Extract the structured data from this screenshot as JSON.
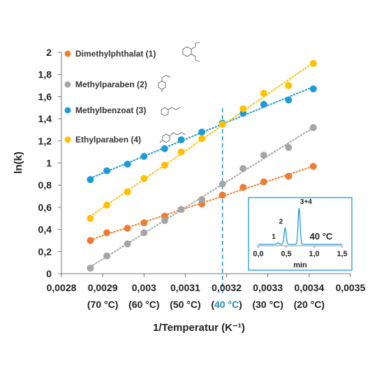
{
  "chart_data": {
    "type": "scatter",
    "xlabel": "1/Temperatur (K⁻¹)",
    "ylabel": "ln(k)",
    "xlim": [
      0.0028,
      0.0035
    ],
    "ylim": [
      0,
      2
    ],
    "x_ticks": [
      "0,0028",
      "0,0029",
      "0,003",
      "0,0031",
      "0,0032",
      "0,0033",
      "0,0034",
      "0,0035"
    ],
    "y_ticks": [
      "0",
      "0,2",
      "0,4",
      "0,6",
      "0,8",
      "1",
      "1,2",
      "1,4",
      "1,6",
      "1,8",
      "2"
    ],
    "temperature_labels": [
      {
        "x": 0.0029,
        "text": "(70 °C)"
      },
      {
        "x": 0.003,
        "text": "(60 °C)"
      },
      {
        "x": 0.0031,
        "text": "(50 °C)"
      },
      {
        "x": 0.0032,
        "text": "(40 °C)",
        "highlight": true
      },
      {
        "x": 0.0033,
        "text": "(30 °C)"
      },
      {
        "x": 0.0034,
        "text": "(20 °C)"
      }
    ],
    "marker_line_x": 0.00319,
    "highlight_color": "#1e8fc8",
    "grid": false,
    "trendlines": "dotted linear",
    "legend_position": "top-left",
    "series": [
      {
        "name": "Dimethylphthalat (1)",
        "color": "#ed7d31",
        "x": [
          0.00287,
          0.00291,
          0.00296,
          0.003,
          0.00305,
          0.00309,
          0.00314,
          0.00319,
          0.00324,
          0.00329,
          0.00335,
          0.00341
        ],
        "y": [
          0.3,
          0.37,
          0.41,
          0.46,
          0.52,
          0.58,
          0.63,
          0.71,
          0.78,
          0.83,
          0.88,
          0.97
        ]
      },
      {
        "name": "Methylparaben (2)",
        "color": "#a5a5a5",
        "x": [
          0.00287,
          0.00291,
          0.00296,
          0.003,
          0.00305,
          0.00309,
          0.00314,
          0.00319,
          0.00324,
          0.00329,
          0.00335,
          0.00341
        ],
        "y": [
          0.05,
          0.16,
          0.27,
          0.37,
          0.48,
          0.58,
          0.67,
          0.81,
          0.95,
          1.07,
          1.14,
          1.32
        ]
      },
      {
        "name": "Methylbenzoat (3)",
        "color": "#1e9bd7",
        "x": [
          0.00287,
          0.00291,
          0.00296,
          0.003,
          0.00305,
          0.00309,
          0.00314,
          0.00319,
          0.00324,
          0.00329,
          0.00335,
          0.00341
        ],
        "y": [
          0.85,
          0.93,
          0.99,
          1.06,
          1.13,
          1.21,
          1.28,
          1.36,
          1.45,
          1.53,
          1.57,
          1.67
        ]
      },
      {
        "name": "Ethylparaben (4)",
        "color": "#ffc000",
        "x": [
          0.00287,
          0.00291,
          0.00296,
          0.003,
          0.00305,
          0.00309,
          0.00314,
          0.00319,
          0.00324,
          0.00329,
          0.00335,
          0.00341
        ],
        "y": [
          0.5,
          0.62,
          0.74,
          0.86,
          0.98,
          1.1,
          1.22,
          1.35,
          1.49,
          1.63,
          1.7,
          1.9
        ]
      }
    ],
    "inset": {
      "type": "line",
      "xlabel": "min",
      "xlim": [
        0,
        1.5
      ],
      "x_ticks": [
        "0,0",
        "0,5",
        "1,0",
        "1,5"
      ],
      "temperature": "40 °C",
      "color": "#1e9bd7",
      "peaks": [
        {
          "label": "1",
          "x": 0.35,
          "height": 0.04
        },
        {
          "label": "2",
          "x": 0.48,
          "height": 0.45
        },
        {
          "label": "3+4",
          "x": 0.73,
          "height": 1.0
        }
      ]
    }
  }
}
